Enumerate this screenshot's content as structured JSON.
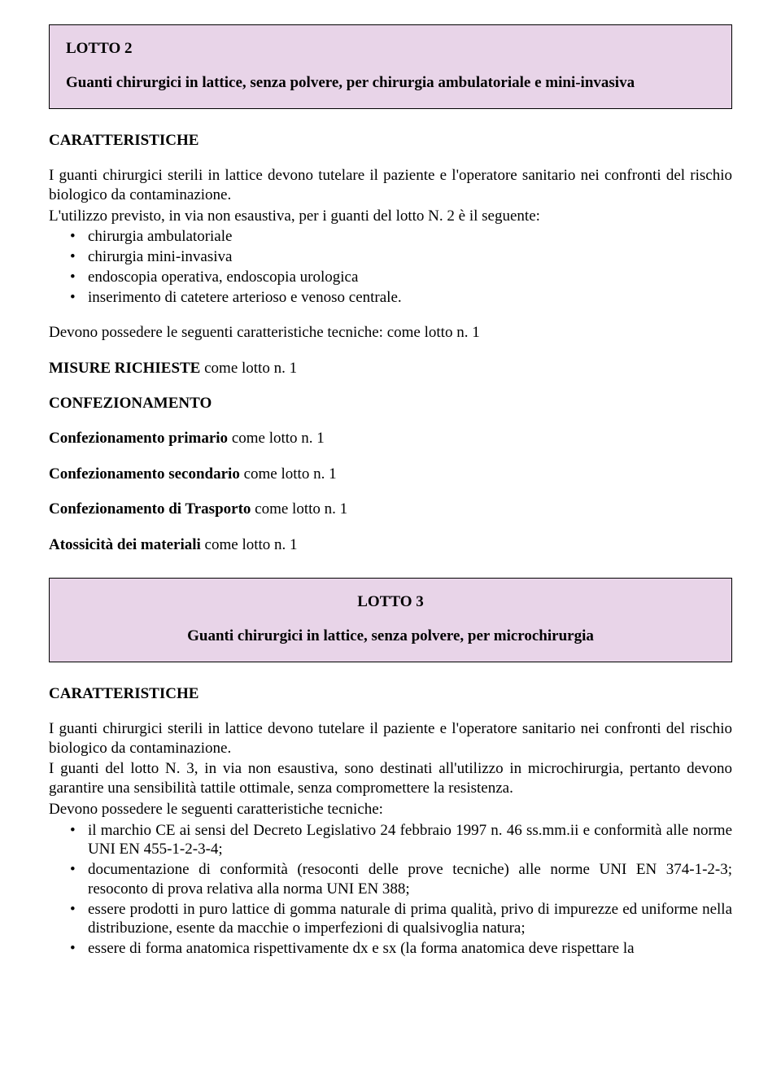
{
  "colors": {
    "header_bg": "#e8d4e8",
    "text": "#000000",
    "page_bg": "#ffffff",
    "border": "#000000"
  },
  "typography": {
    "font_family": "Times New Roman",
    "body_fontsize_pt": 14,
    "heading_fontsize_pt": 14,
    "heading_weight": "bold"
  },
  "lotto2": {
    "title": "LOTTO 2",
    "subtitle": "Guanti chirurgici in lattice, senza polvere, per chirurgia ambulatoriale e mini-invasiva",
    "caratteristiche_label": "CARATTERISTICHE",
    "intro_p1": "I guanti chirurgici sterili in lattice devono tutelare il paziente e l'operatore sanitario  nei confronti del rischio biologico da contaminazione.",
    "intro_p2": "L'utilizzo previsto, in via non esaustiva, per i guanti del lotto N. 2 è il seguente:",
    "usage_list": [
      "chirurgia ambulatoriale",
      "chirurgia mini-invasiva",
      "endoscopia operativa, endoscopia urologica",
      "inserimento di catetere arterioso e venoso centrale."
    ],
    "tech_line": "Devono possedere le seguenti caratteristiche tecniche: come lotto n. 1",
    "misure_label": "MISURE RICHIESTE",
    "misure_rest": " come lotto n. 1",
    "confezionamento_label": "CONFEZIONAMENTO",
    "conf_primario_label": "Confezionamento primario",
    "conf_primario_rest": " come lotto n. 1",
    "conf_secondario_label": "Confezionamento secondario",
    "conf_secondario_rest": " come lotto n. 1",
    "conf_trasporto_label": "Confezionamento di Trasporto",
    "conf_trasporto_rest": " come lotto n. 1",
    "atossicita_label": "Atossicità dei materiali",
    "atossicita_rest": " come lotto n. 1"
  },
  "lotto3": {
    "title": "LOTTO 3",
    "subtitle": "Guanti chirurgici in lattice, senza polvere, per microchirurgia",
    "caratteristiche_label": "CARATTERISTICHE",
    "intro_p1": "I guanti chirurgici sterili in lattice devono tutelare il paziente e l'operatore sanitario nei confronti del rischio biologico da contaminazione.",
    "intro_p2": "I guanti del lotto N. 3, in via non esaustiva, sono destinati all'utilizzo in microchirurgia, pertanto devono garantire una sensibilità tattile ottimale, senza compromettere la resistenza.",
    "intro_p3": "Devono possedere le seguenti caratteristiche tecniche:",
    "tech_list": [
      "il marchio CE ai sensi del Decreto Legislativo 24 febbraio 1997 n. 46 ss.mm.ii e conformità alle norme UNI EN 455-1-2-3-4;",
      "documentazione di conformità (resoconti delle prove tecniche) alle norme UNI EN 374-1-2-3; resoconto di prova relativa alla norma UNI EN 388;",
      "essere prodotti in puro lattice di gomma naturale di prima qualità, privo di impurezze ed uniforme nella distribuzione, esente da macchie o imperfezioni di qualsivoglia natura;",
      "essere di forma anatomica rispettivamente dx e sx (la forma anatomica deve rispettare la"
    ]
  }
}
